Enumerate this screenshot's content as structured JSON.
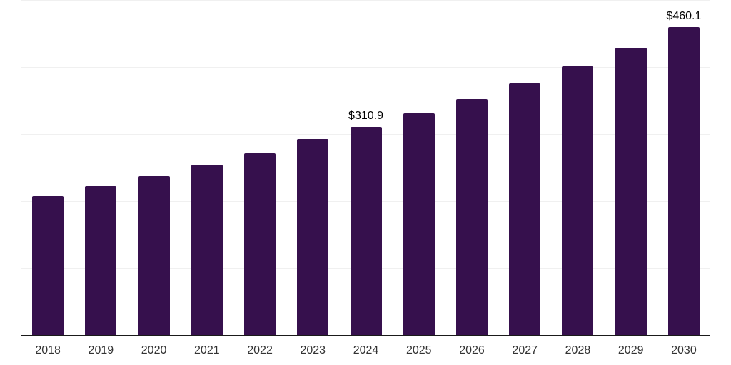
{
  "chart_data": {
    "type": "bar",
    "title": "",
    "xlabel": "",
    "ylabel": "",
    "categories": [
      "2018",
      "2019",
      "2020",
      "2021",
      "2022",
      "2023",
      "2024",
      "2025",
      "2026",
      "2027",
      "2028",
      "2029",
      "2030"
    ],
    "values": [
      207.4,
      222.1,
      236.9,
      254.3,
      271.3,
      292.6,
      310.9,
      331.0,
      352.1,
      375.6,
      401.1,
      428.7,
      460.1
    ],
    "data_labels": [
      {
        "category": "2024",
        "text": "$310.9"
      },
      {
        "category": "2030",
        "text": "$460.1"
      }
    ],
    "ylim": [
      0,
      500
    ],
    "gridline_interval": 50,
    "grid": "horizontal",
    "legend_position": "none",
    "y_axis_labels_visible": false,
    "colors": {
      "bar": "#36104d",
      "axis_line": "#1a1a1a",
      "gridline": "#f0f0f0",
      "tick_label": "#333333",
      "data_label": "#000000",
      "background": "#ffffff"
    }
  }
}
